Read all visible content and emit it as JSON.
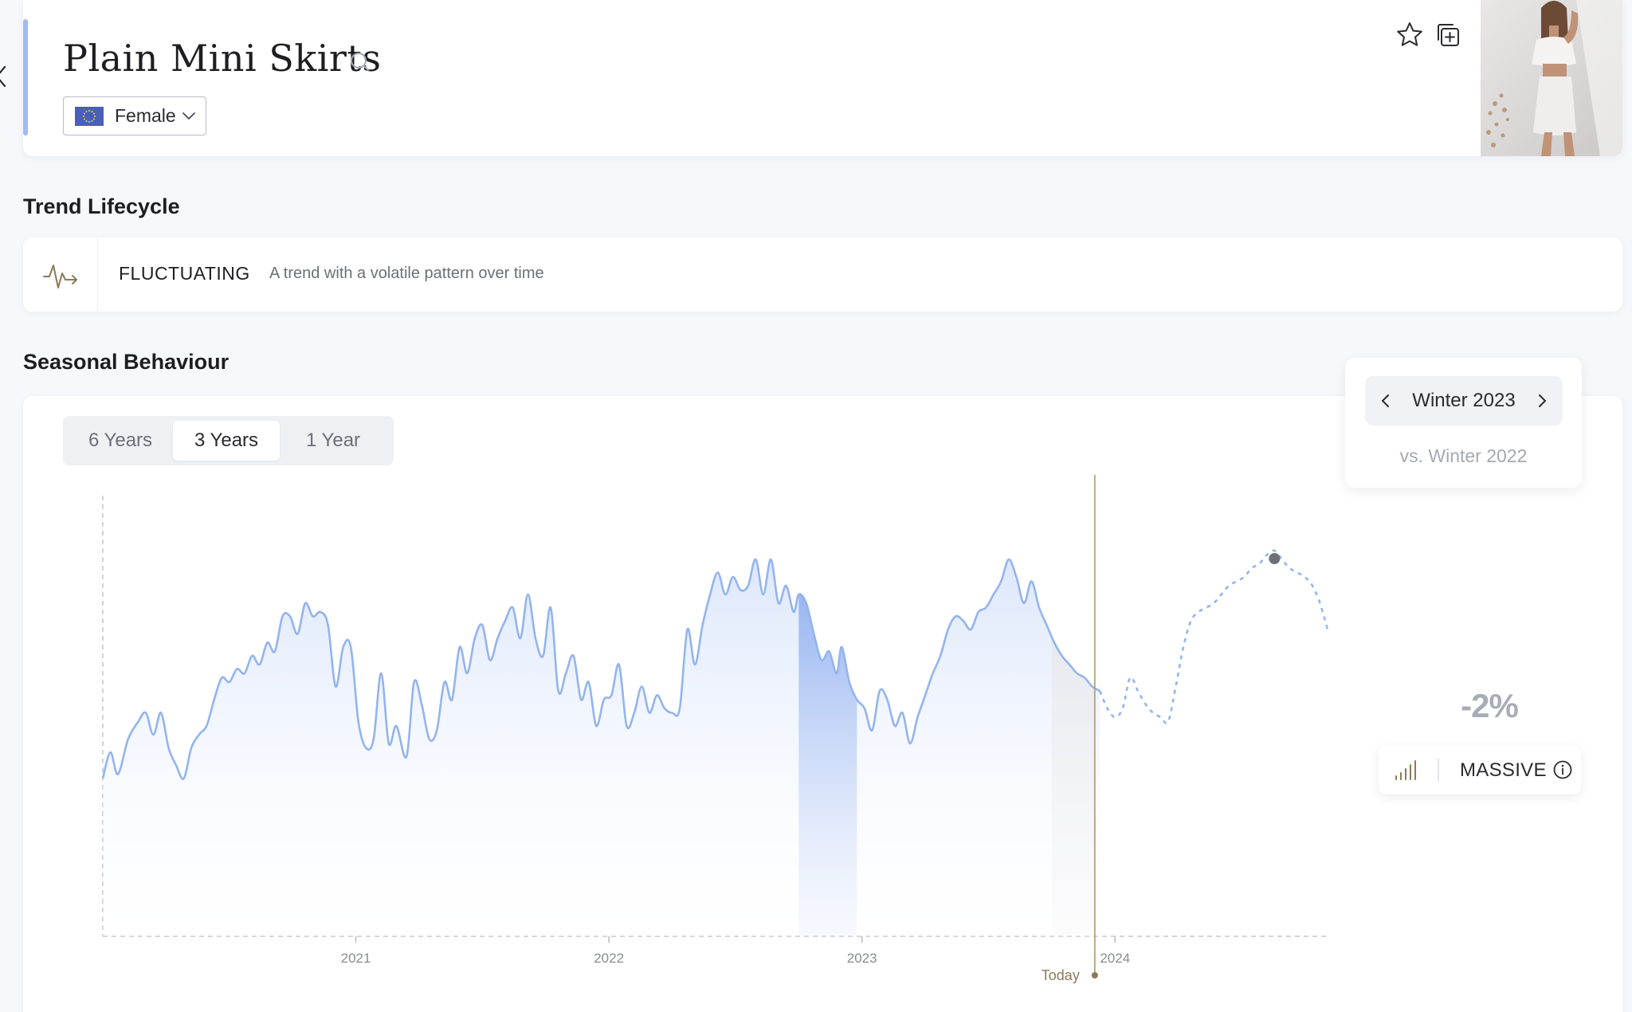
{
  "header": {
    "title": "Plain Mini Skirts",
    "gender_select": {
      "value": "Female"
    }
  },
  "trend_lifecycle": {
    "heading": "Trend Lifecycle",
    "status": "FLUCTUATING",
    "description": "A trend with a volatile pattern over time"
  },
  "seasonal": {
    "heading": "Seasonal Behaviour",
    "range_tabs": [
      {
        "label": "6 Years",
        "active": false
      },
      {
        "label": "3 Years",
        "active": true
      },
      {
        "label": "1 Year",
        "active": false
      }
    ],
    "season": {
      "label": "Winter 2023",
      "compare": "vs. Winter 2022"
    },
    "change": "-2%",
    "volume": "MASSIVE"
  },
  "colors": {
    "accent": "#9fbcf3",
    "line": "#93b4ee",
    "highlight": "#7ea4ec",
    "today": "#b2a27e",
    "gold": "#8b7a57"
  },
  "chart_data": {
    "type": "line",
    "x_ticks": [
      "2021",
      "2022",
      "2023",
      "2024"
    ],
    "today_label": "Today",
    "x_range": [
      2020.0,
      2024.84
    ],
    "y_range": [
      0,
      100
    ],
    "today_x": 2023.92,
    "highlight_range": [
      2022.75,
      2022.98
    ],
    "forecast_start": 2023.92,
    "series": [
      {
        "values": [
          [
            2020.0,
            36
          ],
          [
            2020.03,
            42
          ],
          [
            2020.06,
            37
          ],
          [
            2020.1,
            45
          ],
          [
            2020.14,
            49
          ],
          [
            2020.17,
            51
          ],
          [
            2020.2,
            46
          ],
          [
            2020.23,
            51
          ],
          [
            2020.26,
            43
          ],
          [
            2020.29,
            39
          ],
          [
            2020.32,
            36
          ],
          [
            2020.35,
            43
          ],
          [
            2020.38,
            46
          ],
          [
            2020.41,
            48
          ],
          [
            2020.44,
            54
          ],
          [
            2020.47,
            59
          ],
          [
            2020.5,
            58
          ],
          [
            2020.53,
            61
          ],
          [
            2020.56,
            60
          ],
          [
            2020.59,
            64
          ],
          [
            2020.62,
            62
          ],
          [
            2020.65,
            67
          ],
          [
            2020.68,
            65
          ],
          [
            2020.71,
            73
          ],
          [
            2020.74,
            73
          ],
          [
            2020.77,
            69
          ],
          [
            2020.8,
            76
          ],
          [
            2020.83,
            73
          ],
          [
            2020.86,
            74
          ],
          [
            2020.89,
            71
          ],
          [
            2020.92,
            57
          ],
          [
            2020.95,
            66
          ],
          [
            2020.98,
            66
          ],
          [
            2021.01,
            49
          ],
          [
            2021.04,
            43
          ],
          [
            2021.07,
            45
          ],
          [
            2021.1,
            60
          ],
          [
            2021.13,
            44
          ],
          [
            2021.16,
            48
          ],
          [
            2021.2,
            41
          ],
          [
            2021.23,
            58
          ],
          [
            2021.26,
            53
          ],
          [
            2021.29,
            45
          ],
          [
            2021.32,
            47
          ],
          [
            2021.35,
            58
          ],
          [
            2021.38,
            54
          ],
          [
            2021.41,
            66
          ],
          [
            2021.44,
            60
          ],
          [
            2021.47,
            68
          ],
          [
            2021.5,
            71
          ],
          [
            2021.53,
            63
          ],
          [
            2021.56,
            68
          ],
          [
            2021.59,
            72
          ],
          [
            2021.62,
            75
          ],
          [
            2021.65,
            68
          ],
          [
            2021.68,
            78
          ],
          [
            2021.71,
            68
          ],
          [
            2021.74,
            64
          ],
          [
            2021.77,
            75
          ],
          [
            2021.8,
            56
          ],
          [
            2021.83,
            60
          ],
          [
            2021.86,
            64
          ],
          [
            2021.89,
            54
          ],
          [
            2021.92,
            58
          ],
          [
            2021.95,
            48
          ],
          [
            2021.98,
            54
          ],
          [
            2022.01,
            55
          ],
          [
            2022.04,
            62
          ],
          [
            2022.07,
            48
          ],
          [
            2022.1,
            51
          ],
          [
            2022.13,
            57
          ],
          [
            2022.16,
            51
          ],
          [
            2022.19,
            55
          ],
          [
            2022.22,
            52
          ],
          [
            2022.25,
            51
          ],
          [
            2022.28,
            52
          ],
          [
            2022.31,
            70
          ],
          [
            2022.34,
            62
          ],
          [
            2022.37,
            71
          ],
          [
            2022.4,
            78
          ],
          [
            2022.43,
            83
          ],
          [
            2022.46,
            78
          ],
          [
            2022.49,
            82
          ],
          [
            2022.52,
            79
          ],
          [
            2022.55,
            80
          ],
          [
            2022.58,
            86
          ],
          [
            2022.61,
            78
          ],
          [
            2022.64,
            86
          ],
          [
            2022.67,
            76
          ],
          [
            2022.7,
            80
          ],
          [
            2022.73,
            74
          ],
          [
            2022.75,
            78
          ],
          [
            2022.78,
            76
          ],
          [
            2022.81,
            69
          ],
          [
            2022.84,
            63
          ],
          [
            2022.87,
            65
          ],
          [
            2022.9,
            60
          ],
          [
            2022.92,
            66
          ],
          [
            2022.95,
            58
          ],
          [
            2022.98,
            54
          ],
          [
            2023.01,
            52
          ],
          [
            2023.04,
            47
          ],
          [
            2023.07,
            56
          ],
          [
            2023.1,
            54
          ],
          [
            2023.13,
            48
          ],
          [
            2023.16,
            51
          ],
          [
            2023.19,
            44
          ],
          [
            2023.22,
            50
          ],
          [
            2023.25,
            55
          ],
          [
            2023.28,
            60
          ],
          [
            2023.31,
            64
          ],
          [
            2023.34,
            70
          ],
          [
            2023.37,
            73
          ],
          [
            2023.4,
            72
          ],
          [
            2023.43,
            70
          ],
          [
            2023.46,
            74
          ],
          [
            2023.49,
            75
          ],
          [
            2023.52,
            78
          ],
          [
            2023.55,
            81
          ],
          [
            2023.58,
            86
          ],
          [
            2023.61,
            82
          ],
          [
            2023.64,
            76
          ],
          [
            2023.67,
            81
          ],
          [
            2023.7,
            75
          ],
          [
            2023.73,
            71
          ],
          [
            2023.76,
            67
          ],
          [
            2023.79,
            64
          ],
          [
            2023.82,
            62
          ],
          [
            2023.85,
            60
          ],
          [
            2023.88,
            59
          ],
          [
            2023.91,
            57
          ],
          [
            2023.94,
            56
          ]
        ]
      },
      {
        "values": [
          [
            2023.94,
            56
          ],
          [
            2023.97,
            52
          ],
          [
            2024.0,
            50
          ],
          [
            2024.03,
            52
          ],
          [
            2024.06,
            59
          ],
          [
            2024.09,
            56
          ],
          [
            2024.12,
            53
          ],
          [
            2024.15,
            51
          ],
          [
            2024.18,
            50
          ],
          [
            2024.21,
            49
          ],
          [
            2024.24,
            57
          ],
          [
            2024.27,
            66
          ],
          [
            2024.3,
            72
          ],
          [
            2024.33,
            74
          ],
          [
            2024.36,
            75
          ],
          [
            2024.39,
            76
          ],
          [
            2024.42,
            78
          ],
          [
            2024.45,
            80
          ],
          [
            2024.48,
            81
          ],
          [
            2024.51,
            82
          ],
          [
            2024.54,
            84
          ],
          [
            2024.57,
            85
          ],
          [
            2024.6,
            87
          ],
          [
            2024.63,
            88
          ],
          [
            2024.66,
            86
          ],
          [
            2024.69,
            84
          ],
          [
            2024.72,
            83
          ],
          [
            2024.75,
            82
          ],
          [
            2024.78,
            80
          ],
          [
            2024.81,
            76
          ],
          [
            2024.84,
            70
          ]
        ]
      }
    ]
  }
}
